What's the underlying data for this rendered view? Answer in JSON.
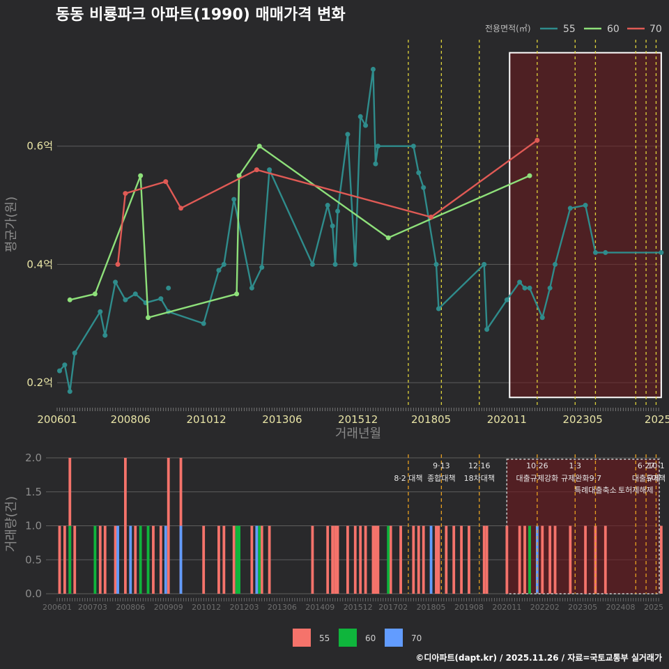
{
  "chart_data": {
    "title": "동동 비룡파크 아파트(1990) 매매가격 변화",
    "legend_title": "전용면적(㎡)",
    "series_colors": {
      "55": "#2f8c8c",
      "60": "#8ee07a",
      "70": "#e05a55"
    },
    "bar_colors": {
      "55": "#f5736b",
      "60": "#0fb53c",
      "70": "#629cff"
    },
    "xlabel": "거래년월",
    "ylabel_top": "평균가(원)",
    "ylabel_bottom": "거래량(건)",
    "x_range": [
      2006.0,
      2025.9
    ],
    "price": {
      "type": "line",
      "ylim": [
        0.16,
        0.78
      ],
      "yticks": [
        0.2,
        0.4,
        0.6
      ],
      "ytick_labels": [
        "0.2억",
        "0.4억",
        "0.6억"
      ],
      "xtick_labels": [
        "200601",
        "200806",
        "201012",
        "201306",
        "201512",
        "201805",
        "202011",
        "202305",
        "2025"
      ],
      "xtick_values": [
        2006.0,
        2008.42,
        2010.92,
        2013.42,
        2015.92,
        2018.33,
        2020.83,
        2023.33,
        2025.9
      ],
      "series": [
        {
          "name": "55",
          "x": [
            2006.08,
            2006.25,
            2006.42,
            2006.58,
            2007.42,
            2007.58,
            2007.92,
            2008.25,
            2008.58,
            2008.92,
            2009.42,
            2009.67,
            2010.83,
            2011.33,
            2011.5,
            2011.83,
            2012.42,
            2012.75,
            2013.0,
            2014.42,
            2014.92,
            2015.08,
            2015.17,
            2015.25,
            2015.58,
            2015.83,
            2016.0,
            2016.17,
            2016.42,
            2016.5,
            2016.58,
            2017.75,
            2017.92,
            2018.08,
            2018.5,
            2018.58,
            2020.08,
            2020.17,
            2020.83,
            2021.25,
            2021.42,
            2021.58,
            2022.0,
            2022.25,
            2022.42,
            2022.92,
            2023.42,
            2023.75,
            2024.08,
            2025.92
          ],
          "y": [
            0.22,
            0.23,
            0.185,
            0.25,
            0.32,
            0.28,
            0.37,
            0.34,
            0.35,
            0.335,
            0.342,
            0.32,
            0.3,
            0.39,
            0.4,
            0.51,
            0.36,
            0.395,
            0.56,
            0.4,
            0.5,
            0.465,
            0.4,
            0.49,
            0.62,
            0.4,
            0.65,
            0.635,
            0.73,
            0.57,
            0.6,
            0.6,
            0.555,
            0.53,
            0.4,
            0.325,
            0.4,
            0.29,
            0.34,
            0.37,
            0.36,
            0.36,
            0.31,
            0.36,
            0.4,
            0.495,
            0.5,
            0.42,
            0.42,
            0.42
          ]
        },
        {
          "name": "60",
          "x": [
            2006.42,
            2007.25,
            2008.75,
            2009.0,
            2011.92,
            2012.0,
            2012.67,
            2016.92,
            2021.58
          ],
          "y": [
            0.34,
            0.35,
            0.55,
            0.31,
            0.35,
            0.55,
            0.6,
            0.445,
            0.55
          ]
        },
        {
          "name": "70",
          "x": [
            2008.0,
            2008.25,
            2009.58,
            2010.08,
            2012.58,
            2018.33,
            2021.83
          ],
          "y": [
            0.4,
            0.52,
            0.54,
            0.495,
            0.56,
            0.48,
            0.61
          ]
        }
      ],
      "isolated_points": [
        {
          "name": "55",
          "x": 2009.67,
          "y": 0.36
        }
      ],
      "policy_lines": [
        2017.58,
        2018.67,
        2019.92,
        2021.83,
        2023.08,
        2023.75,
        2025.08,
        2025.42,
        2025.75
      ]
    },
    "volume": {
      "type": "bar",
      "ylim": [
        0,
        2.0
      ],
      "yticks": [
        0.0,
        0.5,
        1.0,
        1.5,
        2.0
      ],
      "ytick_labels": [
        "0.0",
        "0.5",
        "1.0",
        "1.5",
        "2.0"
      ],
      "xtick_labels": [
        "200601",
        "200703",
        "200806",
        "200909",
        "201012",
        "201203",
        "201306",
        "201409",
        "201512",
        "201702",
        "201805",
        "201908",
        "202011",
        "202202",
        "202305",
        "202408",
        "2025"
      ],
      "xtick_values": [
        2006.0,
        2007.17,
        2008.42,
        2009.67,
        2010.92,
        2012.17,
        2013.42,
        2014.67,
        2015.92,
        2017.08,
        2018.33,
        2019.58,
        2020.83,
        2022.08,
        2023.33,
        2024.58,
        2025.9
      ],
      "bars_55": [
        [
          2006.08,
          1
        ],
        [
          2006.25,
          1
        ],
        [
          2006.42,
          2
        ],
        [
          2006.58,
          1
        ],
        [
          2007.42,
          1
        ],
        [
          2007.58,
          1
        ],
        [
          2007.92,
          1
        ],
        [
          2008.25,
          2
        ],
        [
          2008.58,
          1
        ],
        [
          2009.17,
          1
        ],
        [
          2009.42,
          1
        ],
        [
          2009.67,
          2
        ],
        [
          2010.08,
          2
        ],
        [
          2010.83,
          1
        ],
        [
          2011.33,
          1
        ],
        [
          2011.5,
          1
        ],
        [
          2011.83,
          1
        ],
        [
          2012.42,
          1
        ],
        [
          2012.75,
          1
        ],
        [
          2013.0,
          1
        ],
        [
          2014.42,
          1
        ],
        [
          2014.92,
          1
        ],
        [
          2015.08,
          1
        ],
        [
          2015.17,
          1
        ],
        [
          2015.25,
          1
        ],
        [
          2015.58,
          1
        ],
        [
          2015.83,
          1
        ],
        [
          2016.0,
          1
        ],
        [
          2016.17,
          1
        ],
        [
          2016.42,
          1
        ],
        [
          2016.5,
          1
        ],
        [
          2016.58,
          1
        ],
        [
          2017.0,
          1
        ],
        [
          2017.33,
          1
        ],
        [
          2017.75,
          1
        ],
        [
          2017.92,
          1
        ],
        [
          2018.08,
          1
        ],
        [
          2018.5,
          1
        ],
        [
          2018.58,
          1
        ],
        [
          2018.83,
          1
        ],
        [
          2019.08,
          1
        ],
        [
          2019.33,
          1
        ],
        [
          2019.58,
          1
        ],
        [
          2020.08,
          1
        ],
        [
          2020.17,
          1
        ],
        [
          2020.83,
          1
        ],
        [
          2021.25,
          1
        ],
        [
          2021.42,
          1
        ],
        [
          2021.58,
          1
        ],
        [
          2022.0,
          1
        ],
        [
          2022.25,
          1
        ],
        [
          2022.42,
          1
        ],
        [
          2022.92,
          1
        ],
        [
          2023.42,
          1
        ],
        [
          2023.75,
          1
        ],
        [
          2024.08,
          1
        ],
        [
          2025.92,
          1
        ]
      ],
      "bars_60": [
        [
          2006.42,
          1
        ],
        [
          2007.25,
          1
        ],
        [
          2008.75,
          1
        ],
        [
          2009.0,
          1
        ],
        [
          2011.92,
          1
        ],
        [
          2012.0,
          1
        ],
        [
          2012.67,
          1
        ],
        [
          2016.92,
          1
        ],
        [
          2021.58,
          1
        ]
      ],
      "bars_70": [
        [
          2008.0,
          1
        ],
        [
          2008.42,
          1
        ],
        [
          2009.58,
          1
        ],
        [
          2010.08,
          1
        ],
        [
          2012.58,
          1
        ],
        [
          2018.33,
          1
        ],
        [
          2021.83,
          1
        ]
      ]
    },
    "policy_labels": [
      {
        "x": 2017.58,
        "row": 1,
        "text": "8·2 대책"
      },
      {
        "x": 2018.67,
        "row": 0,
        "text": "9·13"
      },
      {
        "x": 2018.67,
        "row": 1,
        "text": "종합대책"
      },
      {
        "x": 2019.92,
        "row": 0,
        "text": "12·16"
      },
      {
        "x": 2019.92,
        "row": 1,
        "text": "18차대책"
      },
      {
        "x": 2021.83,
        "row": 0,
        "text": "10·26"
      },
      {
        "x": 2021.83,
        "row": 1,
        "text": "대출규제강화"
      },
      {
        "x": 2023.08,
        "row": 0,
        "text": "1·3"
      },
      {
        "x": 2023.08,
        "row": 1,
        "text": "규제완화"
      },
      {
        "x": 2023.75,
        "row": 1,
        "text": "9·7"
      },
      {
        "x": 2023.75,
        "row": 2,
        "text": "특례대출축소"
      },
      {
        "x": 2025.08,
        "row": 2,
        "text": "토허제해제"
      },
      {
        "x": 2025.42,
        "row": 0,
        "text": "6·27"
      },
      {
        "x": 2025.42,
        "row": 1,
        "text": "대출규제"
      },
      {
        "x": 2025.75,
        "row": 0,
        "text": "10·1"
      },
      {
        "x": 2025.75,
        "row": 1,
        "text": "5대책"
      }
    ],
    "highlight_range": [
      2020.92,
      2025.92
    ],
    "legend_labels": [
      "55",
      "60",
      "70"
    ],
    "footer": "©디아파트(dapt.kr) / 2025.11.26 / 자료=국토교통부 실거래가"
  }
}
